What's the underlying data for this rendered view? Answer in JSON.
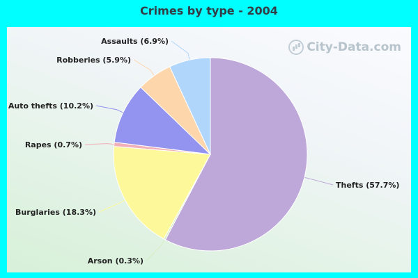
{
  "title": "Crimes by type - 2004",
  "watermark": "City-Data.com",
  "chart_data": {
    "type": "pie",
    "title": "Crimes by type - 2004",
    "start_angle_deg": 0,
    "direction": "clockwise",
    "slices": [
      {
        "name": "Thefts",
        "value": 57.7,
        "label": "Thefts (57.7%)",
        "color": "#bda8d9"
      },
      {
        "name": "Arson",
        "value": 0.3,
        "label": "Arson (0.3%)",
        "color": "#d8edc2"
      },
      {
        "name": "Burglaries",
        "value": 18.3,
        "label": "Burglaries (18.3%)",
        "color": "#fdf99a"
      },
      {
        "name": "Rapes",
        "value": 0.7,
        "label": "Rapes (0.7%)",
        "color": "#f2b0b8"
      },
      {
        "name": "Auto thefts",
        "value": 10.2,
        "label": "Auto thefts (10.2%)",
        "color": "#9393f0"
      },
      {
        "name": "Robberies",
        "value": 5.9,
        "label": "Robberies (5.9%)",
        "color": "#fdd6ac"
      },
      {
        "name": "Assaults",
        "value": 6.9,
        "label": "Assaults (6.9%)",
        "color": "#b0d6fc"
      }
    ]
  }
}
